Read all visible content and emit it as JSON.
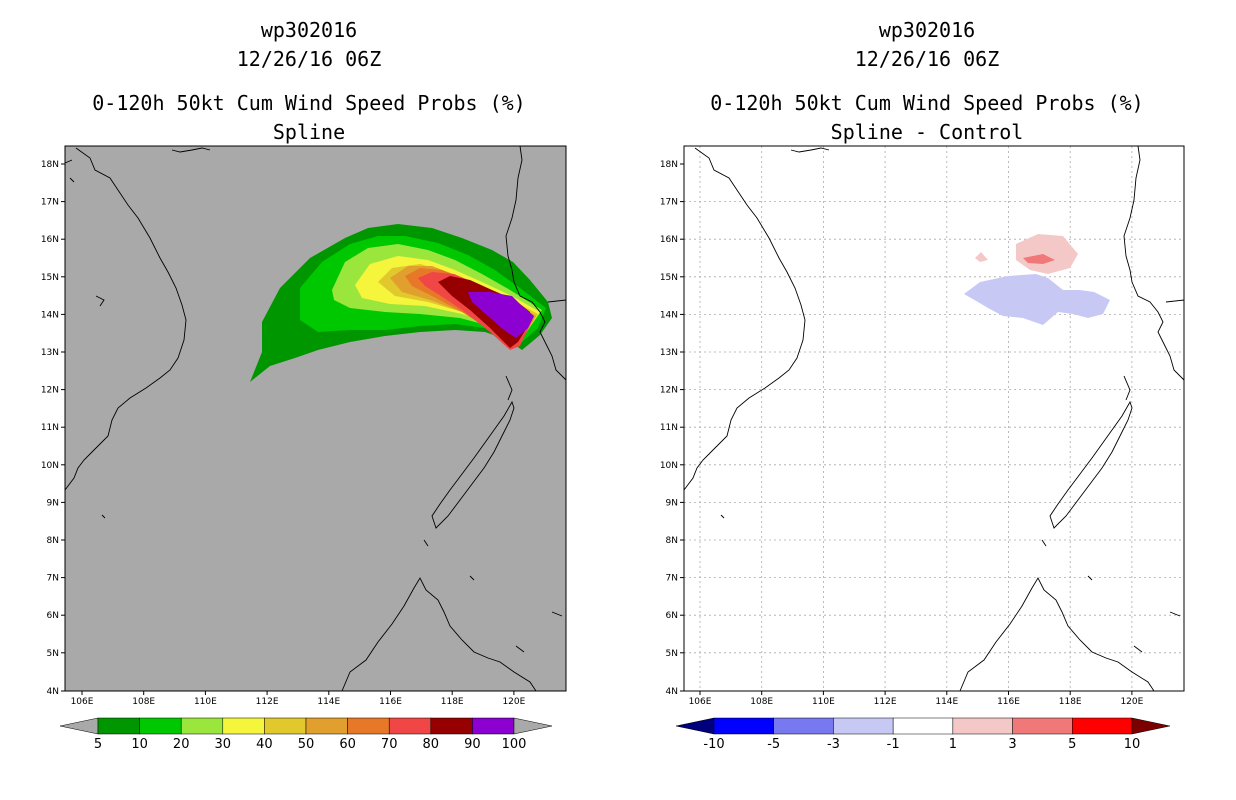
{
  "colors": {
    "land_bg_left": "#a9a9a9",
    "coast": "#000000",
    "grid": "#aaaaaa"
  },
  "left_panel": {
    "storm_id": "wp302016",
    "datetime": "12/26/16 06Z",
    "product": "0-120h 50kt Cum Wind Speed Probs (%)",
    "subtitle": "Spline",
    "lat_labels": [
      "18N",
      "17N",
      "16N",
      "15N",
      "14N",
      "13N",
      "12N",
      "11N",
      "10N",
      "9N",
      "8N",
      "7N",
      "6N",
      "5N",
      "4N"
    ],
    "lon_labels": [
      "106E",
      "108E",
      "110E",
      "112E",
      "114E",
      "116E",
      "118E",
      "120E"
    ],
    "colorbar": {
      "colors": [
        "#a9a9a9",
        "#009600",
        "#00c800",
        "#9be63c",
        "#f5f53c",
        "#e1c82d",
        "#e1a02d",
        "#e67828",
        "#f04646",
        "#960000",
        "#8c00d2",
        "#a9a9a9"
      ],
      "labels": [
        "5",
        "10",
        "20",
        "30",
        "40",
        "50",
        "60",
        "70",
        "80",
        "90",
        "100"
      ]
    }
  },
  "right_panel": {
    "storm_id": "wp302016",
    "datetime": "12/26/16 06Z",
    "product": "0-120h 50kt Cum Wind Speed Probs (%)",
    "subtitle": "Spline - Control",
    "lat_labels": [
      "18N",
      "17N",
      "16N",
      "15N",
      "14N",
      "13N",
      "12N",
      "11N",
      "10N",
      "9N",
      "8N",
      "7N",
      "6N",
      "5N",
      "4N"
    ],
    "lon_labels": [
      "106E",
      "108E",
      "110E",
      "112E",
      "114E",
      "116E",
      "118E",
      "120E"
    ],
    "colorbar": {
      "colors": [
        "#00007d",
        "#0000ff",
        "#7878f0",
        "#c8c8f5",
        "#ffffff",
        "#f5c8c8",
        "#f07878",
        "#ff0000",
        "#7d0000"
      ],
      "labels": [
        "-10",
        "-5",
        "-3",
        "-1",
        "1",
        "3",
        "5",
        "10"
      ]
    }
  }
}
